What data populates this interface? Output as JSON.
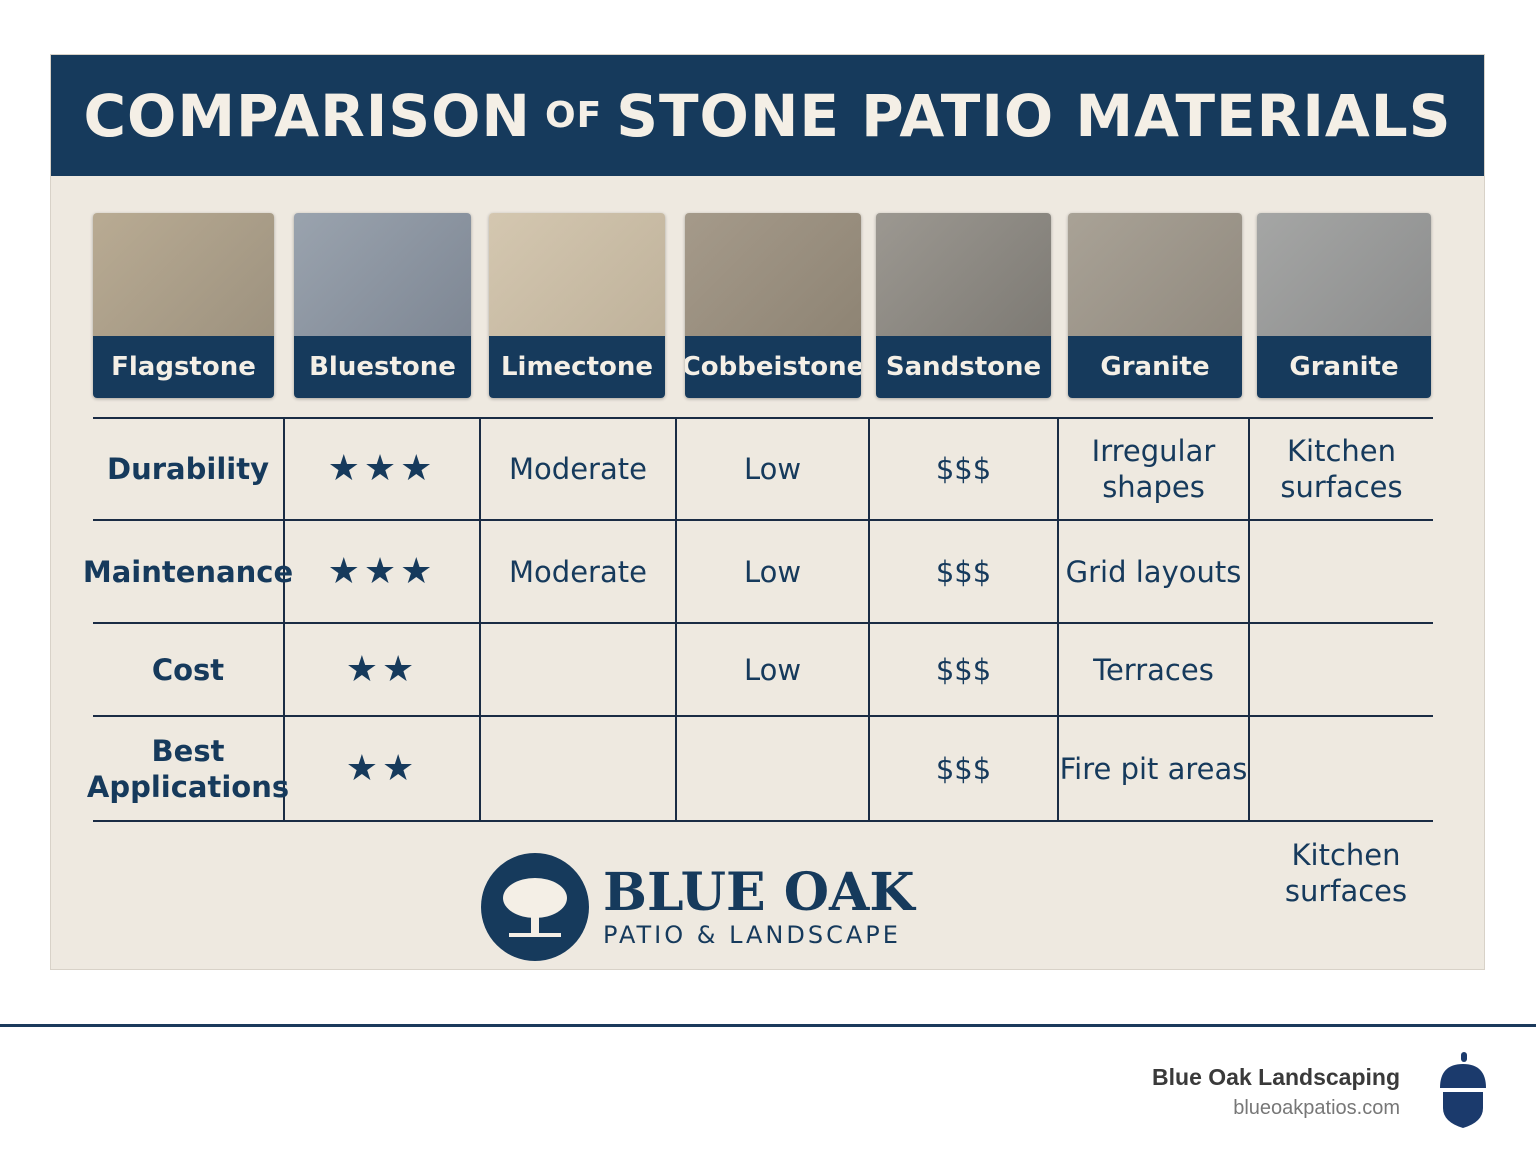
{
  "title": {
    "part1": "COMPARISON",
    "of": "OF",
    "part2": "STONE PATIO MATERIALS"
  },
  "materials": [
    "Flagstone",
    "Bluestone",
    "Limectone",
    "Cobbeistone",
    "Sandstone",
    "Granite",
    "Granite"
  ],
  "rows": [
    {
      "label": "Durability",
      "cells": [
        "★★★",
        "Moderate",
        "Low",
        "$$$",
        "Irregular shapes",
        "Kitchen surfaces"
      ]
    },
    {
      "label": "Maintenance",
      "cells": [
        "★★★",
        "Moderate",
        "Low",
        "$$$",
        "Grid layouts",
        ""
      ]
    },
    {
      "label": "Cost",
      "cells": [
        "★★",
        "",
        "Low",
        "$$$",
        "Terraces",
        ""
      ]
    },
    {
      "label": "Best Applications",
      "cells": [
        "★★",
        "",
        "",
        "$$$",
        "Fire pit areas",
        ""
      ]
    }
  ],
  "extra_note": "Kitchen surfaces",
  "logo": {
    "name": "BLUE OAK",
    "tagline": "PATIO & LANDSCAPE"
  },
  "footer": {
    "company": "Blue Oak Landscaping",
    "url": "blueoakpatios.com"
  },
  "colors": {
    "navy": "#163a5c",
    "cream": "#eee9e0"
  }
}
